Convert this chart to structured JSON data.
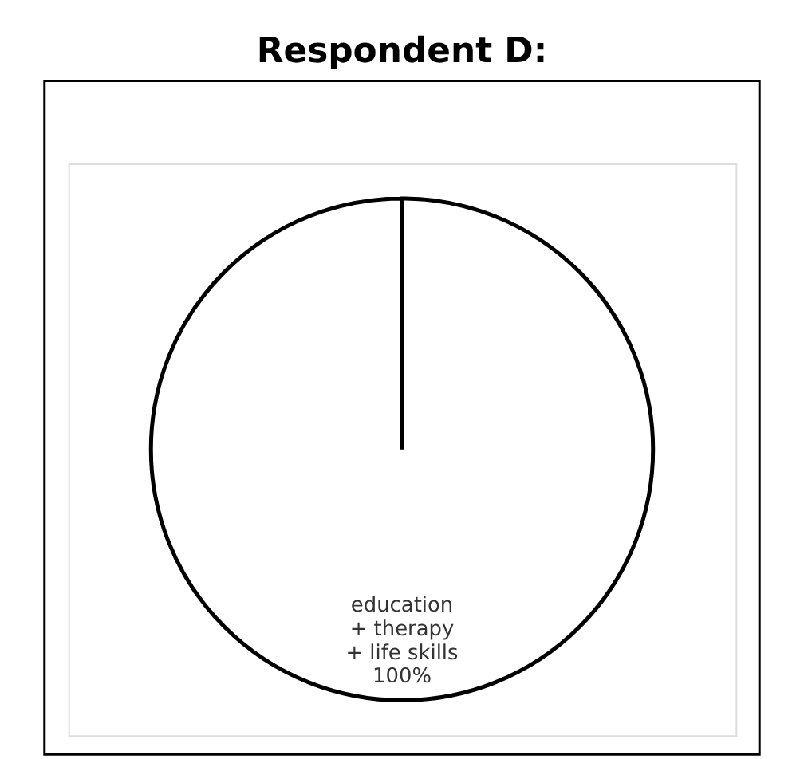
{
  "chart_data": {
    "type": "pie",
    "title": "Respondent D:",
    "categories": [
      "education\n+ therapy\n+ life skills"
    ],
    "values": [
      100
    ],
    "colors": [
      "#ffffff"
    ],
    "value_labels": [
      "100%"
    ],
    "legend": false
  }
}
